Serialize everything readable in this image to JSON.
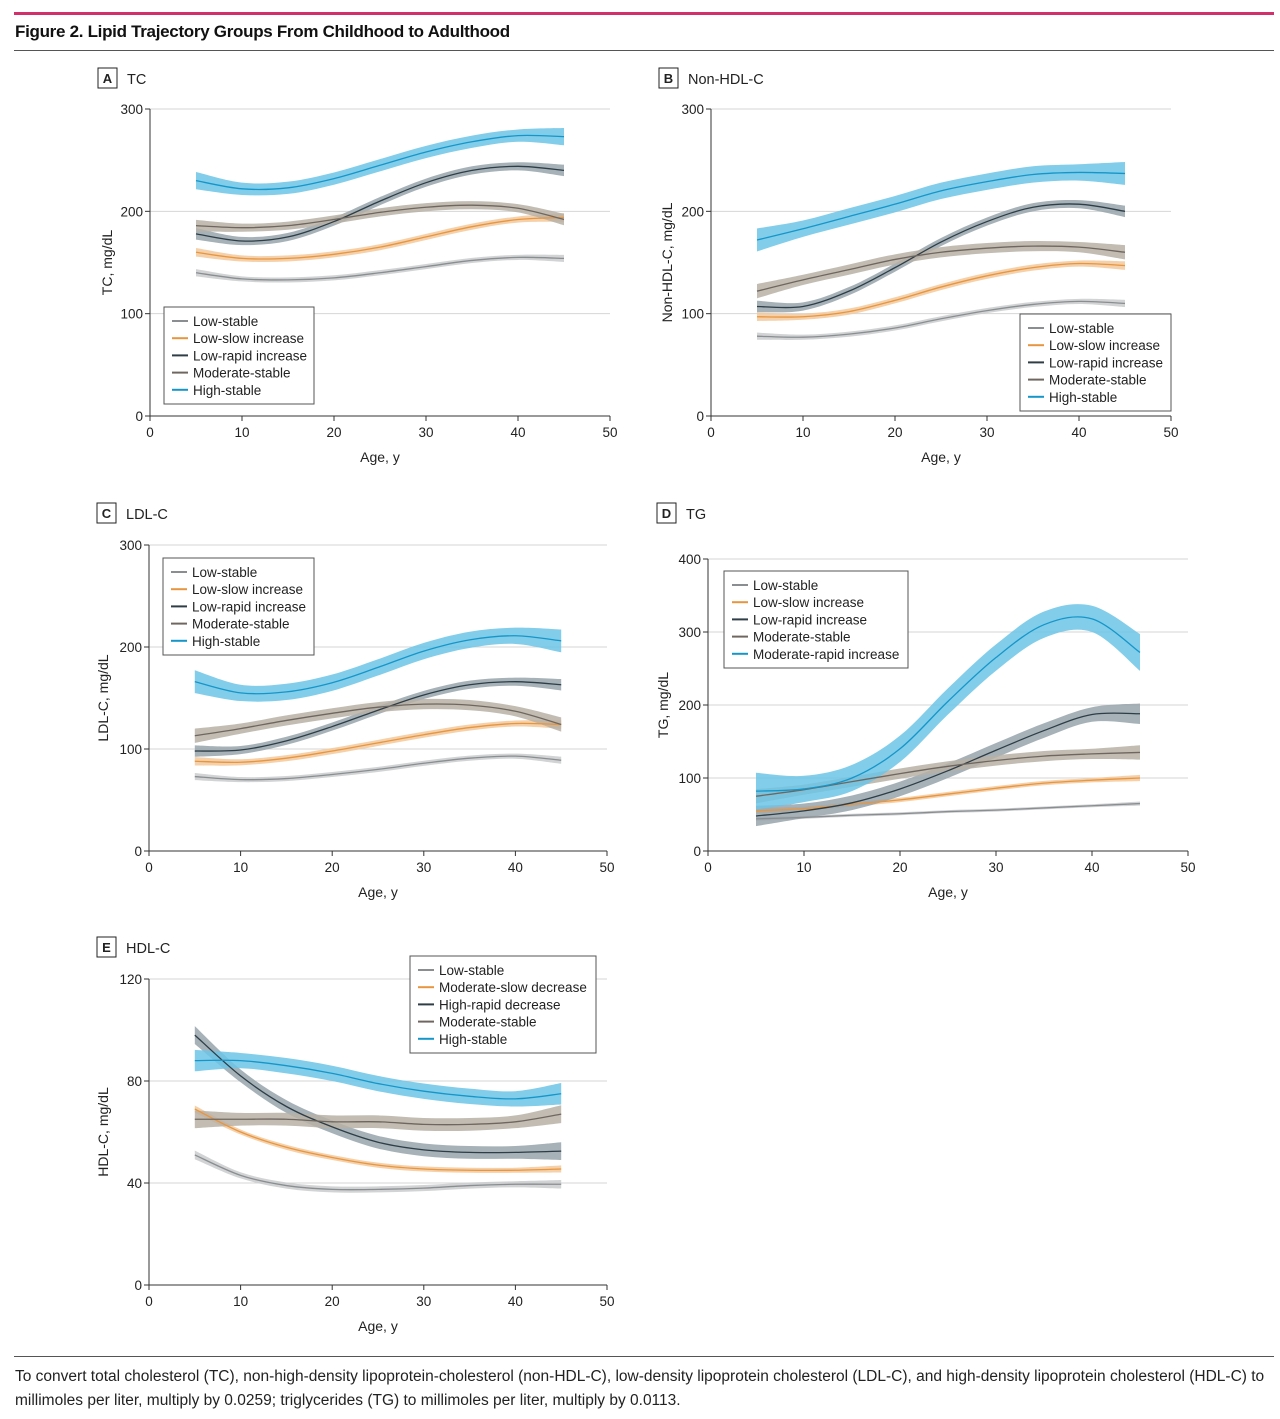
{
  "figure": {
    "title": "Figure 2. Lipid Trajectory Groups From Childhood to Adulthood",
    "caption": "To convert total cholesterol (TC), non-high-density lipoprotein-cholesterol (non-HDL-C), low-density lipoprotein cholesterol (LDL-C), and high-density lipoprotein cholesterol (HDL-C) to millimoles per liter, multiply by 0.0259; triglycerides (TG) to millimoles per liter, multiply by 0.0113.",
    "accent_color": "#d1306b"
  },
  "chart_data": [
    {
      "type": "line",
      "panel_letter": "A",
      "title": "TC",
      "xlabel": "Age, y",
      "ylabel": "TC, mg/dL",
      "xlim": [
        0,
        50
      ],
      "ylim": [
        0,
        300
      ],
      "xticks": [
        "0",
        "10",
        "20",
        "30",
        "40",
        "50"
      ],
      "yticks": [
        "0",
        "100",
        "200",
        "300"
      ],
      "grid": "horizontal",
      "legend": "bottom-left",
      "x": [
        5,
        10,
        15,
        20,
        25,
        30,
        35,
        40,
        45
      ],
      "series": [
        {
          "name": "Low-stable",
          "color": "#8b8e91",
          "band": "#c9cbcd",
          "ci": 2.5,
          "values": [
            140,
            134,
            133,
            135,
            140,
            146,
            152,
            155,
            154
          ]
        },
        {
          "name": "Low-slow increase",
          "color": "#e8953f",
          "band": "#f2c99b",
          "ci": 3,
          "values": [
            160,
            154,
            154,
            158,
            165,
            175,
            185,
            192,
            194
          ]
        },
        {
          "name": "Low-rapid increase",
          "color": "#2e3d46",
          "band": "#97a4ab",
          "ci": 4,
          "values": [
            178,
            171,
            175,
            190,
            210,
            228,
            240,
            244,
            240
          ]
        },
        {
          "name": "Moderate-stable",
          "color": "#6f675f",
          "band": "#b7b0a6",
          "ci": 4,
          "values": [
            186,
            184,
            186,
            192,
            199,
            204,
            206,
            203,
            192
          ]
        },
        {
          "name": "High-stable",
          "color": "#1596c9",
          "band": "#6cc4e6",
          "ci": 6,
          "values": [
            230,
            222,
            223,
            232,
            245,
            258,
            268,
            274,
            273
          ]
        }
      ]
    },
    {
      "type": "line",
      "panel_letter": "B",
      "title": "Non-HDL-C",
      "xlabel": "Age, y",
      "ylabel": "Non-HDL-C, mg/dL",
      "xlim": [
        0,
        50
      ],
      "ylim": [
        0,
        300
      ],
      "xticks": [
        "0",
        "10",
        "20",
        "30",
        "40",
        "50"
      ],
      "yticks": [
        "0",
        "100",
        "200",
        "300"
      ],
      "grid": "horizontal",
      "legend": "bottom-right",
      "x": [
        5,
        10,
        15,
        20,
        25,
        30,
        35,
        40,
        45
      ],
      "series": [
        {
          "name": "Low-stable",
          "color": "#8b8e91",
          "band": "#c9cbcd",
          "ci": 2.5,
          "values": [
            78,
            77,
            80,
            86,
            95,
            103,
            109,
            112,
            110
          ]
        },
        {
          "name": "Low-slow increase",
          "color": "#e8953f",
          "band": "#f2c99b",
          "ci": 3,
          "values": [
            97,
            97,
            102,
            113,
            126,
            137,
            145,
            149,
            147
          ]
        },
        {
          "name": "Low-rapid increase",
          "color": "#2e3d46",
          "band": "#97a4ab",
          "ci": 4,
          "values": [
            107,
            107,
            122,
            145,
            170,
            190,
            204,
            207,
            200
          ]
        },
        {
          "name": "Moderate-stable",
          "color": "#6f675f",
          "band": "#b7b0a6",
          "ci": 5,
          "values": [
            122,
            133,
            143,
            153,
            160,
            164,
            166,
            165,
            160
          ]
        },
        {
          "name": "High-stable",
          "color": "#1596c9",
          "band": "#6cc4e6",
          "ci": 8,
          "values": [
            172,
            183,
            195,
            207,
            220,
            229,
            236,
            238,
            237
          ]
        }
      ]
    },
    {
      "type": "line",
      "panel_letter": "C",
      "title": "LDL-C",
      "xlabel": "Age, y",
      "ylabel": "LDL-C, mg/dL",
      "xlim": [
        0,
        50
      ],
      "ylim": [
        0,
        300
      ],
      "xticks": [
        "0",
        "10",
        "20",
        "30",
        "40",
        "50"
      ],
      "yticks": [
        "0",
        "100",
        "200",
        "300"
      ],
      "grid": "horizontal",
      "legend": "top-left",
      "x": [
        5,
        10,
        15,
        20,
        25,
        30,
        35,
        40,
        45
      ],
      "series": [
        {
          "name": "Low-stable",
          "color": "#8b8e91",
          "band": "#c9cbcd",
          "ci": 2.5,
          "values": [
            73,
            70,
            71,
            75,
            80,
            86,
            91,
            93,
            89
          ]
        },
        {
          "name": "Low-slow increase",
          "color": "#e8953f",
          "band": "#f2c99b",
          "ci": 3,
          "values": [
            88,
            87,
            91,
            98,
            106,
            114,
            121,
            125,
            124
          ]
        },
        {
          "name": "Low-rapid increase",
          "color": "#2e3d46",
          "band": "#97a4ab",
          "ci": 4,
          "values": [
            98,
            99,
            108,
            122,
            138,
            153,
            163,
            166,
            163
          ]
        },
        {
          "name": "Moderate-stable",
          "color": "#6f675f",
          "band": "#b7b0a6",
          "ci": 5,
          "values": [
            113,
            120,
            128,
            135,
            141,
            144,
            143,
            137,
            124
          ]
        },
        {
          "name": "High-stable",
          "color": "#1596c9",
          "band": "#6cc4e6",
          "ci": 8,
          "values": [
            166,
            155,
            156,
            165,
            180,
            196,
            207,
            211,
            206
          ]
        }
      ]
    },
    {
      "type": "line",
      "panel_letter": "D",
      "title": "TG",
      "xlabel": "Age, y",
      "ylabel": "TG, mg/dL",
      "xlim": [
        0,
        50
      ],
      "ylim": [
        0,
        400
      ],
      "xticks": [
        "0",
        "10",
        "20",
        "30",
        "40",
        "50"
      ],
      "yticks": [
        "0",
        "100",
        "200",
        "300",
        "400"
      ],
      "grid": "horizontal",
      "legend": "top-left",
      "x": [
        5,
        10,
        15,
        20,
        25,
        30,
        35,
        40,
        45
      ],
      "series": [
        {
          "name": "Low-stable",
          "color": "#8b8e91",
          "band": "#c9cbcd",
          "ci": 2,
          "values": [
            44,
            46,
            49,
            51,
            54,
            56,
            59,
            62,
            65
          ]
        },
        {
          "name": "Low-slow increase",
          "color": "#e8953f",
          "band": "#f2c99b",
          "ci": 3,
          "values": [
            55,
            58,
            64,
            70,
            78,
            86,
            93,
            97,
            100
          ]
        },
        {
          "name": "Low-rapid increase",
          "color": "#2e3d46",
          "band": "#97a4ab",
          "ci": 10,
          "values": [
            48,
            55,
            66,
            85,
            110,
            138,
            165,
            187,
            188
          ]
        },
        {
          "name": "Moderate-stable",
          "color": "#6f675f",
          "band": "#b7b0a6",
          "ci": 7,
          "values": [
            75,
            84,
            95,
            106,
            116,
            124,
            130,
            133,
            135
          ]
        },
        {
          "name": "Moderate-rapid increase",
          "color": "#1596c9",
          "band": "#6cc4e6",
          "ci": 18,
          "values": [
            82,
            85,
            100,
            140,
            205,
            265,
            310,
            318,
            272
          ]
        }
      ]
    },
    {
      "type": "line",
      "panel_letter": "E",
      "title": "HDL-C",
      "xlabel": "Age, y",
      "ylabel": "HDL-C, mg/dL",
      "xlim": [
        0,
        50
      ],
      "ylim": [
        0,
        120
      ],
      "xticks": [
        "0",
        "10",
        "20",
        "30",
        "40",
        "50"
      ],
      "yticks": [
        "0",
        "40",
        "80",
        "120"
      ],
      "grid": "horizontal",
      "legend": "top-right",
      "x": [
        5,
        10,
        15,
        20,
        25,
        30,
        35,
        40,
        45
      ],
      "series": [
        {
          "name": "Low-stable",
          "color": "#8b8e91",
          "band": "#c9cbcd",
          "ci": 1.2,
          "values": [
            51,
            43,
            39,
            37.5,
            37.5,
            38,
            39,
            39.5,
            39.5
          ]
        },
        {
          "name": "Moderate-slow decrease",
          "color": "#e8953f",
          "band": "#f2c99b",
          "ci": 1,
          "values": [
            69,
            60,
            54,
            50,
            47,
            45.5,
            45,
            45,
            45.5
          ]
        },
        {
          "name": "High-rapid decrease",
          "color": "#2e3d46",
          "band": "#97a4ab",
          "ci": 2.5,
          "values": [
            98,
            82,
            70,
            62,
            56,
            53,
            52,
            52,
            52.5
          ]
        },
        {
          "name": "Moderate-stable",
          "color": "#6f675f",
          "band": "#b7b0a6",
          "ci": 2.5,
          "values": [
            65,
            65,
            65,
            64,
            64,
            63,
            63,
            64,
            67
          ]
        },
        {
          "name": "High-stable",
          "color": "#1596c9",
          "band": "#6cc4e6",
          "ci": 3,
          "values": [
            88,
            88,
            86,
            83,
            79,
            76,
            74,
            73,
            75
          ]
        }
      ]
    }
  ]
}
